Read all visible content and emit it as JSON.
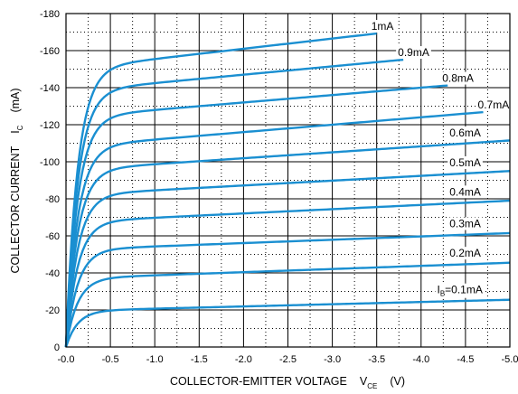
{
  "chart_data": {
    "type": "line",
    "xlabel": "COLLECTOR-EMITTER VOLTAGE",
    "xlabel_symbol": "V",
    "xlabel_subscript": "CE",
    "xlabel_unit": "(V)",
    "ylabel": "COLLECTOR CURRENT",
    "ylabel_symbol": "I",
    "ylabel_subscript": "C",
    "ylabel_unit": "(mA)",
    "xlim": [
      0.0,
      -5.0
    ],
    "ylim": [
      0,
      -180
    ],
    "x_ticks": [
      "-0.0",
      "-0.5",
      "-1.0",
      "-1.5",
      "-2.0",
      "-2.5",
      "-3.0",
      "-3.5",
      "-4.0",
      "-4.5",
      "-5.0"
    ],
    "y_ticks": [
      "0",
      "-20",
      "-40",
      "-60",
      "-80",
      "-100",
      "-120",
      "-140",
      "-160",
      "-180"
    ],
    "grid": "solid major, dotted minor",
    "colors": {
      "curve": "#1a8fd1",
      "grid": "#000000"
    },
    "series": [
      {
        "name": "0.1mA",
        "label_prefix": "I",
        "label_sub": "B",
        "label_suffix": "=0.1mA",
        "x_end": -5.0,
        "sat": -19.5,
        "slope": 1.2
      },
      {
        "name": "0.2mA",
        "x_end": -5.0,
        "sat": -37.0,
        "slope": 1.7
      },
      {
        "name": "0.3mA",
        "x_end": -5.0,
        "sat": -52.5,
        "slope": 1.8
      },
      {
        "name": "0.4mA",
        "x_end": -5.0,
        "sat": -67.5,
        "slope": 2.3
      },
      {
        "name": "0.5mA",
        "x_end": -5.0,
        "sat": -82.0,
        "slope": 2.6
      },
      {
        "name": "0.6mA",
        "x_end": -5.0,
        "sat": -95.5,
        "slope": 3.2
      },
      {
        "name": "0.7mA",
        "x_end": -4.7,
        "sat": -108.0,
        "slope": 4.0
      },
      {
        "name": "0.8mA",
        "x_end": -4.3,
        "sat": -124.0,
        "slope": 4.0
      },
      {
        "name": "0.9mA",
        "x_end": -3.8,
        "sat": -138.0,
        "slope": 4.5
      },
      {
        "name": "1mA",
        "x_end": -3.5,
        "sat": -150.0,
        "slope": 5.5
      }
    ]
  }
}
